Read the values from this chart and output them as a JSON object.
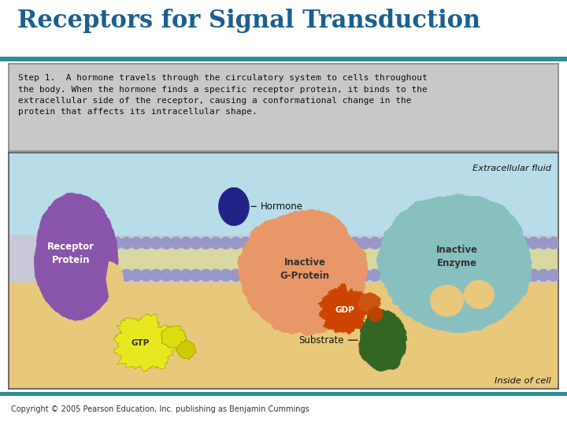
{
  "title": "Receptors for Signal Transduction",
  "title_color": "#1a6090",
  "title_fontsize": 22,
  "title_fontstyle": "bold",
  "bg_color": "#ffffff",
  "teal_line_color": "#2a9090",
  "step_text": "Step 1.  A hormone travels through the circulatory system to cells throughout\nthe body. When the hormone finds a specific receptor protein, it binds to the\nextracellular side of the receptor, causing a conformational change in the\nprotein that affects its intracellular shape.",
  "copyright": "Copyright © 2005 Pearson Education, Inc. publishing as Benjamin Cummings",
  "extracellular_fluid_color": "#b8dce8",
  "intracellular_fluid_color": "#e8c87a",
  "membrane_bead_color": "#9898c8",
  "membrane_tail_color": "#d8d8a0",
  "membrane_lavender_color": "#c8c8d8",
  "receptor_protein_color": "#8855aa",
  "hormone_color": "#222288",
  "g_protein_color": "#e89868",
  "gdp_color": "#cc4400",
  "gtp_color": "#e8e820",
  "enzyme_color": "#88c0c0",
  "substrate_color": "#336622",
  "label_font_size": 9,
  "step_box_bg": "#c8c8c8",
  "step_box_border": "#888888"
}
